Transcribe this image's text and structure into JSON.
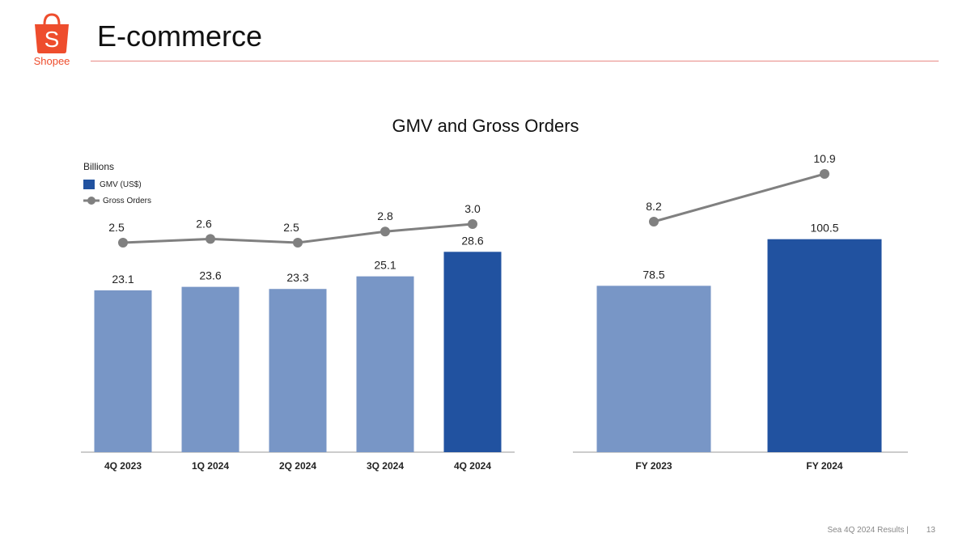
{
  "header": {
    "title": "E-commerce",
    "logo_text": "Shopee",
    "brand_color": "#ee4d2d"
  },
  "footer": {
    "text": "Sea 4Q 2024 Results |",
    "page": "13"
  },
  "chart_data": [
    {
      "type": "bar+line",
      "title": "GMV and Gross Orders",
      "unit_label": "Billions",
      "categories": [
        "4Q 2023",
        "1Q 2024",
        "2Q 2024",
        "3Q 2024",
        "4Q 2024"
      ],
      "series": [
        {
          "name": "GMV (US$)",
          "type": "bar",
          "values": [
            23.1,
            23.6,
            23.3,
            25.1,
            28.6
          ],
          "colors": [
            "#7896c6",
            "#7896c6",
            "#7896c6",
            "#7896c6",
            "#2152a0"
          ]
        },
        {
          "name": "Gross Orders",
          "type": "line",
          "values": [
            2.5,
            2.6,
            2.5,
            2.8,
            3.0
          ],
          "color": "#808080"
        }
      ],
      "legend": "top-left"
    },
    {
      "type": "bar+line",
      "categories": [
        "FY 2023",
        "FY 2024"
      ],
      "series": [
        {
          "name": "GMV (US$)",
          "type": "bar",
          "values": [
            78.5,
            100.5
          ],
          "colors": [
            "#7896c6",
            "#2152a0"
          ]
        },
        {
          "name": "Gross Orders",
          "type": "line",
          "values": [
            8.2,
            10.9
          ],
          "color": "#808080"
        }
      ]
    }
  ]
}
